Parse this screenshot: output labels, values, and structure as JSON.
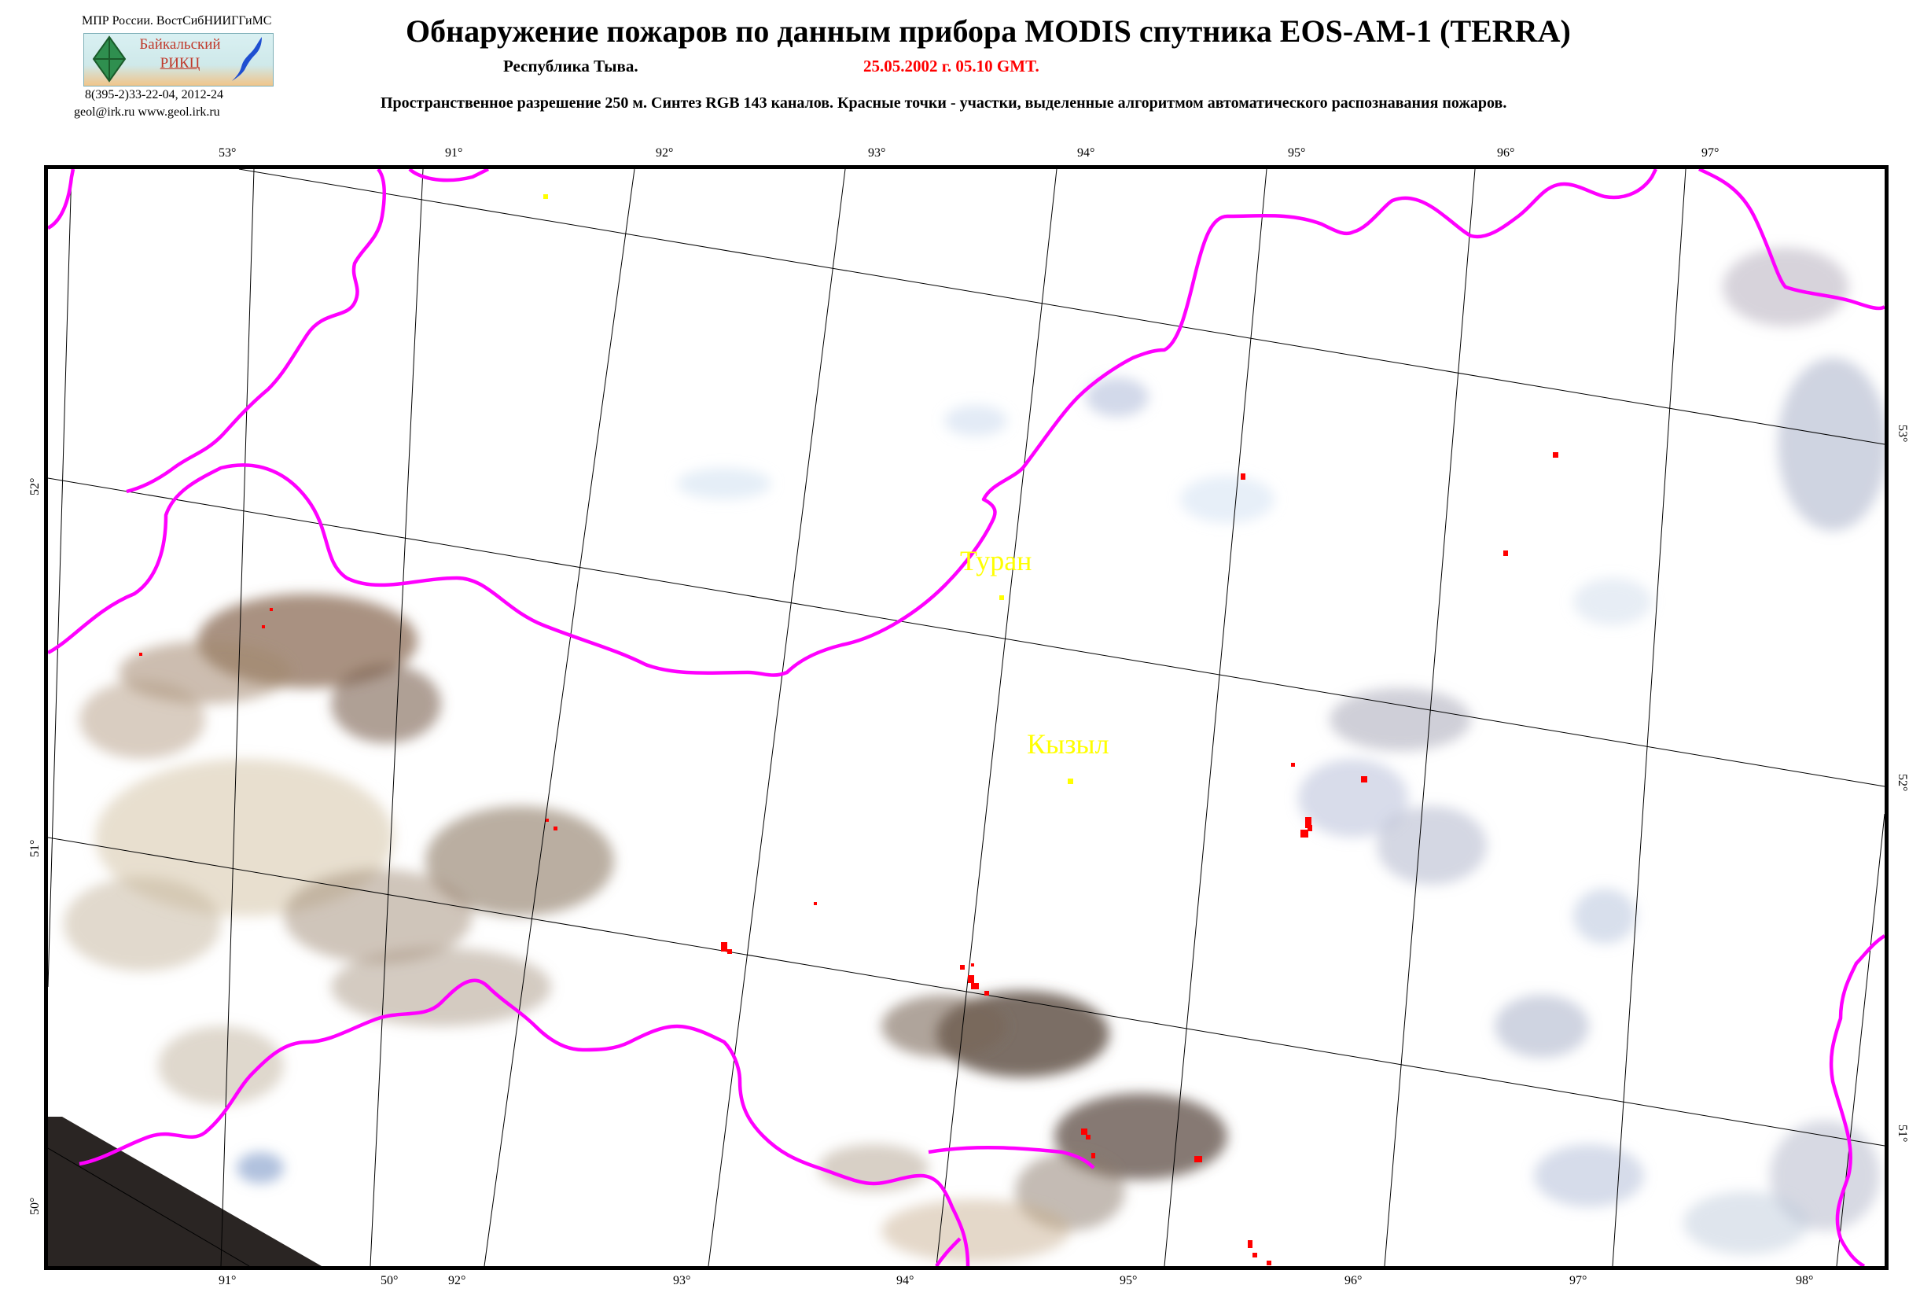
{
  "header": {
    "org_line": "МПР России. ВостСибНИИГГиМС",
    "logo_text_1": "Байкальский",
    "logo_text_2": "РИКЦ",
    "phone": "8(395-2)33-22-04, 2012-24",
    "contacts": "geol@irk.ru  www.geol.irk.ru",
    "title": "Обнаружение пожаров по данным прибора MODIS спутника EOS-AM-1 (TERRA)",
    "region": "Республика Тыва.",
    "datetime": "25.05.2002 г.  05.10 GMT.",
    "description": "Пространственное разрешение 250 м. Синтез RGB 143 каналов.    Красные точки - участки, выделенные алгоритмом автоматического распознавания пожаров."
  },
  "map": {
    "colors": {
      "border": "#ff00ff",
      "fire": "#ff0000",
      "city": "#ffff00",
      "grid": "#000000"
    },
    "top_ticks": [
      "53°",
      "91°",
      "92°",
      "93°",
      "94°",
      "95°",
      "96°",
      "97°"
    ],
    "bottom_ticks": [
      "91°",
      "50°",
      "92°",
      "93°",
      "94°",
      "95°",
      "96°",
      "97°",
      "98°"
    ],
    "left_ticks": [
      "52°",
      "51°",
      "50°"
    ],
    "right_ticks": [
      "53°",
      "52°",
      "51°"
    ],
    "cities": [
      {
        "name": "Туран"
      },
      {
        "name": "Кызыл"
      }
    ]
  }
}
